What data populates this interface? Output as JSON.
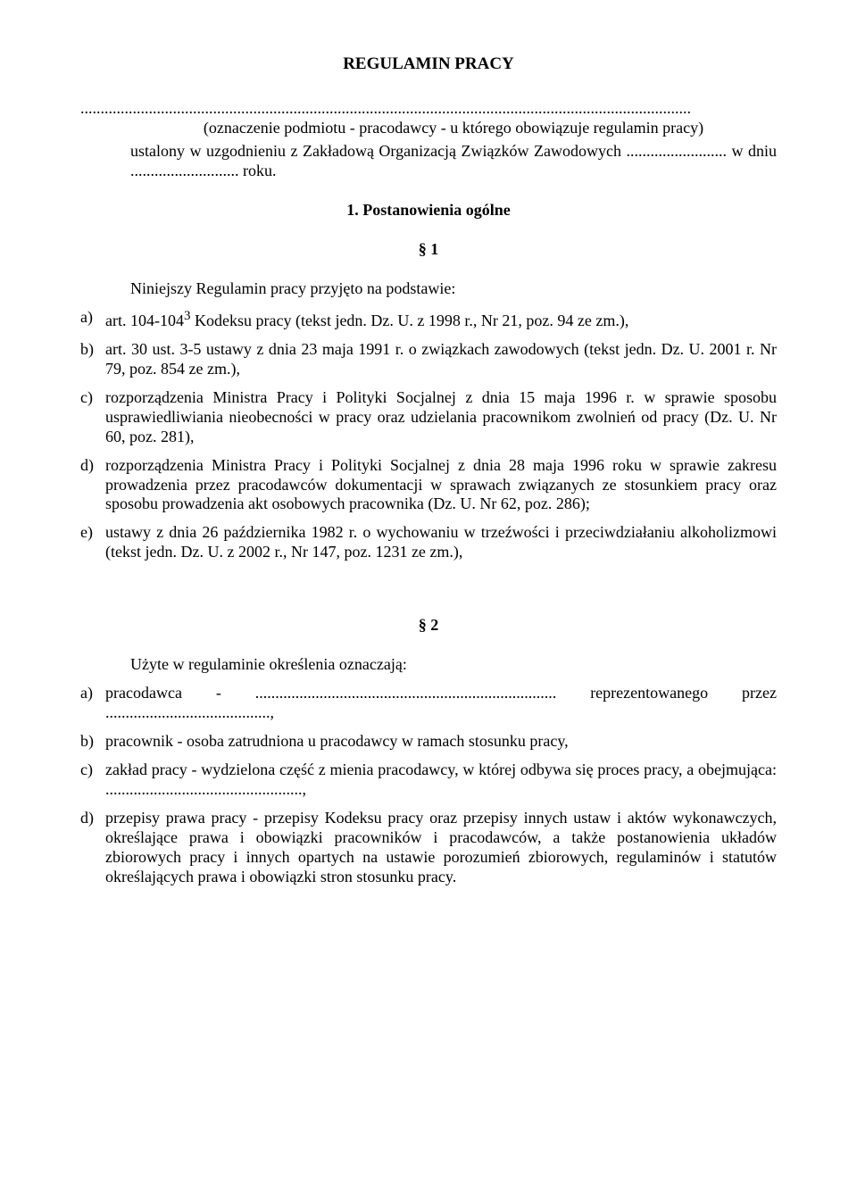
{
  "title": "REGULAMIN PRACY",
  "dotted_full": "........................................................................................................................................................",
  "preamble": {
    "note": "(oznaczenie podmiotu - pracodawcy - u którego obowiązuje regulamin pracy)",
    "text": "ustalony w uzgodnieniu z Zakładową Organizacją Związków Zawodowych ......................... w dniu ........................... roku."
  },
  "chapter1": {
    "heading": "1. Postanowienia ogólne",
    "section1": {
      "symbol": "§ 1",
      "lead": "Niniejszy Regulamin pracy przyjęto na podstawie:",
      "items": [
        {
          "marker": "a)",
          "html": "art. 104-104<sup>3</sup> Kodeksu pracy (tekst jedn. Dz. U. z 1998 r., Nr 21, poz. 94 ze zm.),"
        },
        {
          "marker": "b)",
          "html": "art. 30 ust. 3-5 ustawy z dnia 23 maja 1991 r. o związkach zawodowych (tekst jedn. Dz. U. 2001 r. Nr 79, poz. 854 ze zm.),"
        },
        {
          "marker": "c)",
          "html": "rozporządzenia Ministra Pracy i Polityki Socjalnej z dnia 15 maja 1996 r. w sprawie sposobu usprawiedliwiania nieobecności w pracy oraz udzielania pracownikom zwolnień od pracy (Dz. U. Nr 60, poz. 281),"
        },
        {
          "marker": "d)",
          "html": "rozporządzenia Ministra Pracy i Polityki Socjalnej z dnia 28 maja 1996 roku w sprawie zakresu prowadzenia przez pracodawców dokumentacji w sprawach związanych ze stosunkiem pracy oraz sposobu prowadzenia akt osobowych pracownika (Dz. U. Nr 62, poz. 286);"
        },
        {
          "marker": "e)",
          "html": "ustawy z dnia 26 października 1982 r. o wychowaniu w trzeźwości i przeciwdziałaniu alkoholizmowi (tekst jedn. Dz. U. z 2002 r., Nr 147, poz. 1231 ze zm.),"
        }
      ]
    },
    "section2": {
      "symbol": "§ 2",
      "lead": "Użyte w regulaminie określenia oznaczają:",
      "items": [
        {
          "marker": "a)",
          "html": "pracodawca - ........................................................................... reprezentowanego przez .........................................,"
        },
        {
          "marker": "b)",
          "html": "pracownik - osoba zatrudniona u pracodawcy w ramach stosunku pracy,"
        },
        {
          "marker": "c)",
          "html": "zakład pracy - wydzielona część z mienia pracodawcy, w której odbywa się proces pracy, a obejmująca: .................................................,"
        },
        {
          "marker": "d)",
          "html": "przepisy prawa pracy - przepisy Kodeksu pracy oraz przepisy innych ustaw i aktów wykonawczych, określające prawa i obowiązki pracowników i pracodawców, a także postanowienia układów zbiorowych pracy i innych opartych na ustawie porozumień zbiorowych, regulaminów i statutów określających prawa i obowiązki stron stosunku pracy."
        }
      ]
    }
  }
}
